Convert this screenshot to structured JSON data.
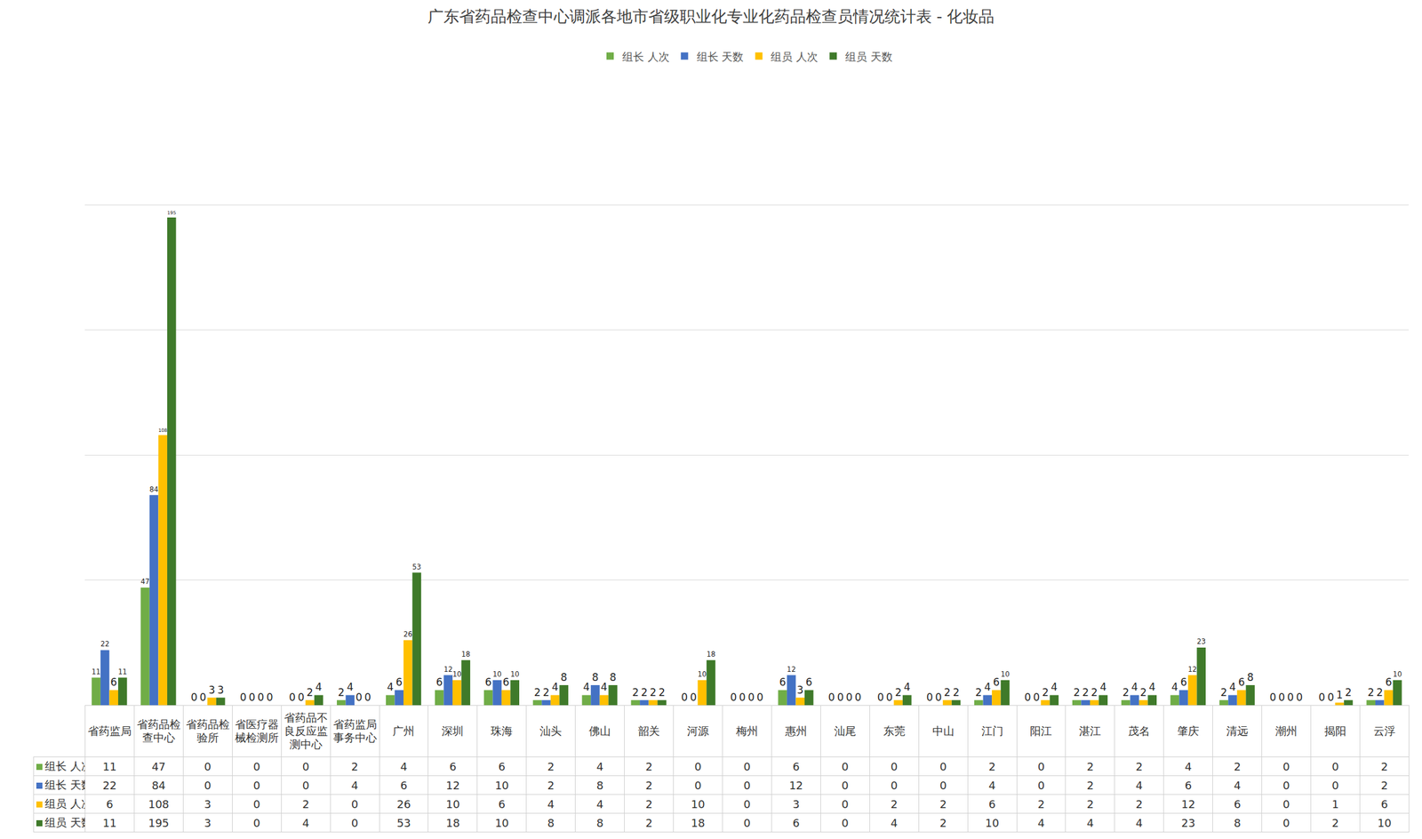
{
  "chart_data": {
    "type": "bar",
    "title": "广东省药品检查中心调派各地市省级职业化专业化药品检查员情况统计表 - 化妆品",
    "categories": [
      "省药监局",
      "省药品检查中心",
      "省药品检验所",
      "省医疗器械检测所",
      "省药品不良反应监测中心",
      "省药监局事务中心",
      "广州",
      "深圳",
      "珠海",
      "汕头",
      "佛山",
      "韶关",
      "河源",
      "梅州",
      "惠州",
      "汕尾",
      "东莞",
      "中山",
      "江门",
      "阳江",
      "湛江",
      "茂名",
      "肇庆",
      "清远",
      "潮州",
      "揭阳",
      "云浮"
    ],
    "series": [
      {
        "name": "组长 人次",
        "color": "#70ad47",
        "values": [
          11,
          47,
          0,
          0,
          0,
          2,
          4,
          6,
          6,
          2,
          4,
          2,
          0,
          0,
          6,
          0,
          0,
          0,
          2,
          0,
          2,
          2,
          4,
          2,
          0,
          0,
          2
        ]
      },
      {
        "name": "组长 天数",
        "color": "#4472c4",
        "values": [
          22,
          84,
          0,
          0,
          0,
          4,
          6,
          12,
          10,
          2,
          8,
          2,
          0,
          0,
          12,
          0,
          0,
          0,
          4,
          0,
          2,
          4,
          6,
          4,
          0,
          0,
          2
        ]
      },
      {
        "name": "组员 人次",
        "color": "#ffc000",
        "values": [
          6,
          108,
          3,
          0,
          2,
          0,
          26,
          10,
          6,
          4,
          4,
          2,
          10,
          0,
          3,
          0,
          2,
          2,
          6,
          2,
          2,
          2,
          12,
          6,
          0,
          1,
          6
        ]
      },
      {
        "name": "组员 天数",
        "color": "#3f7a2a",
        "values": [
          11,
          195,
          3,
          0,
          4,
          0,
          53,
          18,
          10,
          8,
          8,
          2,
          18,
          0,
          6,
          0,
          4,
          2,
          10,
          4,
          4,
          4,
          23,
          8,
          0,
          2,
          10
        ]
      }
    ],
    "ylim": [
      0,
      250
    ],
    "yticks": [
      0,
      50,
      100,
      150,
      200,
      250
    ],
    "grid": true,
    "tick_labels": false,
    "data_labels": true,
    "legend": "top"
  }
}
